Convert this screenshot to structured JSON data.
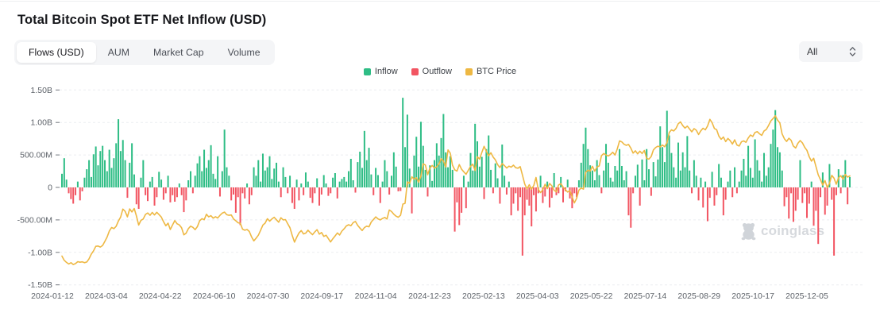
{
  "header": {
    "title": "Total Bitcoin Spot ETF Net Inflow (USD)"
  },
  "tabs": {
    "items": [
      {
        "label": "Flows (USD)",
        "active": true
      },
      {
        "label": "AUM",
        "active": false
      },
      {
        "label": "Market Cap",
        "active": false
      },
      {
        "label": "Volume",
        "active": false
      }
    ]
  },
  "controls": {
    "range_select": {
      "value": "All"
    }
  },
  "watermark": {
    "text": "coinglass"
  },
  "chart_data": {
    "type": "bar",
    "title": "Total Bitcoin Spot ETF Net Inflow (USD)",
    "subtype": "combo-bar-line",
    "grid": "dashed-horizontal",
    "legend_position": "top-center",
    "x_start": "2024-01-12",
    "x_step_days": 2,
    "x_ticks": [
      "2024-01-12",
      "2024-03-04",
      "2024-04-22",
      "2024-06-10",
      "2024-07-30",
      "2024-09-17",
      "2024-11-04",
      "2024-12-23",
      "2025-02-13",
      "2025-04-03",
      "2025-05-22",
      "2025-07-14",
      "2025-08-29",
      "2025-10-17",
      "2025-12-05"
    ],
    "y_ticks": [
      "1.50B",
      "1.00B",
      "500.00M",
      "0",
      "-500.00M",
      "-1.00B",
      "-1.50B"
    ],
    "y_tick_values_m": [
      1500,
      1000,
      500,
      0,
      -500,
      -1000,
      -1500
    ],
    "ylim_m": [
      -1500,
      1500
    ],
    "price_axis_kusd": {
      "min": 30,
      "max": 140,
      "visible": false
    },
    "series": [
      {
        "name": "Inflow",
        "type": "bar",
        "color": "#2ebd85"
      },
      {
        "name": "Outflow",
        "type": "bar",
        "color": "#f25562"
      },
      {
        "name": "BTC Price",
        "type": "line",
        "color": "#eeb843"
      }
    ],
    "net_flow_musd": [
      210,
      450,
      120,
      -90,
      -180,
      -250,
      -120,
      90,
      -200,
      -60,
      150,
      280,
      420,
      160,
      510,
      630,
      340,
      560,
      640,
      420,
      250,
      580,
      300,
      450,
      680,
      1050,
      560,
      730,
      420,
      -160,
      380,
      680,
      200,
      -260,
      -330,
      150,
      420,
      -120,
      -210,
      90,
      160,
      -280,
      -150,
      240,
      120,
      -190,
      -90,
      180,
      -230,
      -120,
      -220,
      -150,
      60,
      -120,
      -380,
      -200,
      110,
      250,
      -90,
      180,
      370,
      480,
      250,
      580,
      300,
      420,
      650,
      210,
      130,
      480,
      -140,
      250,
      890,
      310,
      180,
      -200,
      -110,
      -390,
      -150,
      -580,
      -90,
      -170,
      60,
      -260,
      -120,
      310,
      180,
      420,
      90,
      520,
      260,
      310,
      480,
      130,
      290,
      380,
      90,
      -150,
      310,
      160,
      -90,
      180,
      -240,
      -330,
      120,
      -200,
      60,
      -120,
      230,
      90,
      -160,
      -240,
      -90,
      140,
      -280,
      -110,
      190,
      60,
      -130,
      -90,
      150,
      220,
      -170,
      90,
      130,
      160,
      90,
      250,
      440,
      110,
      -80,
      390,
      550,
      300,
      870,
      420,
      610,
      200,
      -120,
      300,
      190,
      -240,
      90,
      420,
      250,
      -110,
      180,
      540,
      320,
      -60,
      -55,
      1380,
      620,
      1120,
      290,
      -400,
      490,
      780,
      320,
      1010,
      640,
      270,
      -140,
      340,
      100,
      420,
      680,
      490,
      760,
      1130,
      540,
      310,
      480,
      270,
      -680,
      -230,
      -580,
      -390,
      180,
      -320,
      90,
      530,
      260,
      980,
      710,
      320,
      470,
      -180,
      590,
      800,
      270,
      -90,
      370,
      140,
      -250,
      660,
      180,
      -110,
      90,
      -430,
      -250,
      -90,
      -360,
      -150,
      -1050,
      -430,
      -190,
      -280,
      -600,
      -120,
      -370,
      -90,
      180,
      -240,
      -140,
      90,
      -310,
      -160,
      220,
      -120,
      -90,
      160,
      -230,
      -60,
      120,
      -170,
      -320,
      -90,
      -150,
      110,
      380,
      670,
      920,
      590,
      340,
      260,
      110,
      420,
      190,
      -90,
      260,
      670,
      380,
      150,
      90,
      330,
      260,
      590,
      330,
      110,
      250,
      -430,
      -620,
      -90,
      180,
      350,
      -280,
      430,
      110,
      590,
      280,
      -130,
      390,
      170,
      430,
      940,
      620,
      390,
      1180,
      800,
      530,
      310,
      150,
      690,
      260,
      540,
      310,
      790,
      260,
      -90,
      420,
      180,
      -200,
      150,
      -310,
      90,
      -520,
      -160,
      240,
      -280,
      -120,
      360,
      150,
      -430,
      -190,
      90,
      260,
      -150,
      310,
      -90,
      90,
      260,
      440,
      180,
      640,
      300,
      150,
      740,
      420,
      260,
      90,
      530,
      180,
      310,
      670,
      890,
      1190,
      620,
      540,
      260,
      -290,
      -150,
      -480,
      -90,
      -530,
      -360,
      -190,
      420,
      -240,
      -90,
      -470,
      -250,
      90,
      -590,
      -360,
      -870,
      -150,
      230,
      -420,
      -280,
      360,
      -190,
      -1050,
      -120,
      280,
      -90,
      190,
      420,
      -260,
      160
    ],
    "btc_price_kusd": [
      46.3,
      44.0,
      42.8,
      41.9,
      42.6,
      41.6,
      42.1,
      43.2,
      42.9,
      43.1,
      42.6,
      43.0,
      44.8,
      47.5,
      49.3,
      51.8,
      52.0,
      51.4,
      52.3,
      54.6,
      57.0,
      60.5,
      62.4,
      61.8,
      63.1,
      66.1,
      68.3,
      72.8,
      71.5,
      68.4,
      72.9,
      71.2,
      73.1,
      68.9,
      63.8,
      66.5,
      67.2,
      69.8,
      70.6,
      69.3,
      70.9,
      69.5,
      71.0,
      69.7,
      68.3,
      65.7,
      63.4,
      64.9,
      61.3,
      63.9,
      66.3,
      64.5,
      63.9,
      62.3,
      58.3,
      59.2,
      61.8,
      63.2,
      62.5,
      61.2,
      62.9,
      66.2,
      67.4,
      66.8,
      69.9,
      68.4,
      69.1,
      67.7,
      68.5,
      67.8,
      69.3,
      70.5,
      71.1,
      69.6,
      69.3,
      69.5,
      67.3,
      66.2,
      65.1,
      64.8,
      61.5,
      60.9,
      61.3,
      60.2,
      57.1,
      54.9,
      56.4,
      58.1,
      60.8,
      63.8,
      64.9,
      67.4,
      66.0,
      67.2,
      68.2,
      66.8,
      65.4,
      67.9,
      66.7,
      66.9,
      64.6,
      62.3,
      58.0,
      54.2,
      56.9,
      59.4,
      60.7,
      58.8,
      59.3,
      60.9,
      59.5,
      58.4,
      59.9,
      61.2,
      58.7,
      59.6,
      57.4,
      58.1,
      56.2,
      54.3,
      56.1,
      57.7,
      59.4,
      58.2,
      60.4,
      61.7,
      63.3,
      64.0,
      63.4,
      65.2,
      65.8,
      63.6,
      62.1,
      60.7,
      62.4,
      63.2,
      62.8,
      65.5,
      67.0,
      68.4,
      67.3,
      66.7,
      67.5,
      68.1,
      67.2,
      72.3,
      71.4,
      69.9,
      68.8,
      68.2,
      69.4,
      75.6,
      76.0,
      88.1,
      87.3,
      91.0,
      89.6,
      90.5,
      87.9,
      91.2,
      98.3,
      97.6,
      92.1,
      95.9,
      97.4,
      95.8,
      96.6,
      98.2,
      101.2,
      99.8,
      96.5,
      106.1,
      104.3,
      97.5,
      94.9,
      94.2,
      97.9,
      95.3,
      93.8,
      92.4,
      94.6,
      96.9,
      98.1,
      94.5,
      102.3,
      100.9,
      104.7,
      108.1,
      105.3,
      102.8,
      104.5,
      102.1,
      100.5,
      97.8,
      96.2,
      98.4,
      97.3,
      95.9,
      97.0,
      96.4,
      97.5,
      96.1,
      95.8,
      96.7,
      91.8,
      86.9,
      84.2,
      86.5,
      84.0,
      86.1,
      90.6,
      83.9,
      82.1,
      83.6,
      86.8,
      84.3,
      87.2,
      85.9,
      83.4,
      82.5,
      86.4,
      87.1,
      85.2,
      83.7,
      82.4,
      83.2,
      79.6,
      76.3,
      78.9,
      83.5,
      84.7,
      84.0,
      93.4,
      94.7,
      94.2,
      96.9,
      94.1,
      96.5,
      97.1,
      102.9,
      104.1,
      103.3,
      102.7,
      103.5,
      104.8,
      103.2,
      106.7,
      111.2,
      110.6,
      109.3,
      108.7,
      109.2,
      107.1,
      104.3,
      105.6,
      103.9,
      105.4,
      104.1,
      105.8,
      101.3,
      100.9,
      102.4,
      106.1,
      107.5,
      108.2,
      107.8,
      108.9,
      107.9,
      110.2,
      115.9,
      117.4,
      116.8,
      118.2,
      120.9,
      121.9,
      119.8,
      118.4,
      119.5,
      117.9,
      116.3,
      118.1,
      117.2,
      114.8,
      116.9,
      118.3,
      117.4,
      119.6,
      123.3,
      121.4,
      118.2,
      117.5,
      113.9,
      112.1,
      113.4,
      110.8,
      112.6,
      111.3,
      109.4,
      111.8,
      108.9,
      108.3,
      110.7,
      111.2,
      110.4,
      112.8,
      114.5,
      113.7,
      115.9,
      116.4,
      115.2,
      114.3,
      116.8,
      117.6,
      119.9,
      122.4,
      123.8,
      125.4,
      122.9,
      121.3,
      115.2,
      112.4,
      110.9,
      112.7,
      111.5,
      108.3,
      107.2,
      109.8,
      111.4,
      110.1,
      107.6,
      105.9,
      102.3,
      99.8,
      101.4,
      96.7,
      92.1,
      89.4,
      86.3,
      88.9,
      84.9,
      87.3,
      91.8,
      90.2,
      86.8,
      90.4,
      91.6,
      89.7,
      92.3,
      90.8,
      91.5
    ]
  }
}
